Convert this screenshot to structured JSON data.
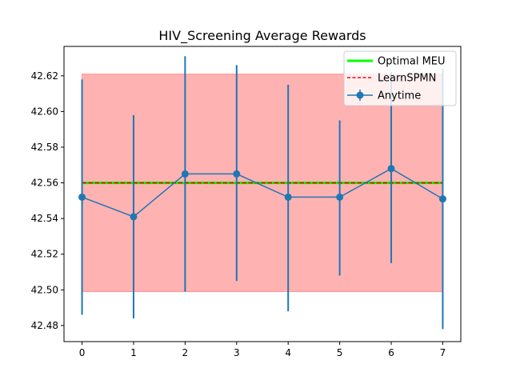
{
  "chart_data": {
    "type": "line",
    "title": "HIV_Screening Average Rewards",
    "xlabel": "",
    "ylabel": "",
    "xlim": [
      -0.35,
      7.35
    ],
    "ylim": [
      42.471,
      42.6365
    ],
    "x_ticks": [
      0,
      1,
      2,
      3,
      4,
      5,
      6,
      7
    ],
    "y_ticks": [
      42.48,
      42.5,
      42.52,
      42.54,
      42.56,
      42.58,
      42.6,
      42.62
    ],
    "y_tick_labels": [
      "42.48",
      "42.50",
      "42.52",
      "42.54",
      "42.56",
      "42.58",
      "42.60",
      "42.62"
    ],
    "grid": false,
    "legend_position": "top-right",
    "legend": [
      "Optimal MEU",
      "LearnSPMN",
      "Anytime"
    ],
    "band": {
      "x": [
        0,
        7
      ],
      "y_low": 42.499,
      "y_high": 42.621,
      "color": "#ff0000",
      "alpha": 0.3
    },
    "series": [
      {
        "name": "Optimal MEU",
        "style": "solid",
        "color": "#00ff00",
        "x": [
          0,
          7
        ],
        "values": [
          42.56,
          42.56
        ]
      },
      {
        "name": "LearnSPMN",
        "style": "dashed",
        "color": "#ff0000",
        "x": [
          0,
          7
        ],
        "values": [
          42.56,
          42.56
        ]
      },
      {
        "name": "Anytime",
        "style": "solid-marker",
        "color": "#1f77b4",
        "x": [
          0,
          1,
          2,
          3,
          4,
          5,
          6,
          7
        ],
        "values": [
          42.552,
          42.541,
          42.565,
          42.565,
          42.552,
          42.552,
          42.568,
          42.551
        ],
        "error_low": [
          42.486,
          42.484,
          42.499,
          42.505,
          42.488,
          42.508,
          42.515,
          42.478
        ],
        "error_high": [
          42.618,
          42.598,
          42.631,
          42.626,
          42.615,
          42.595,
          42.622,
          42.624
        ]
      }
    ]
  }
}
